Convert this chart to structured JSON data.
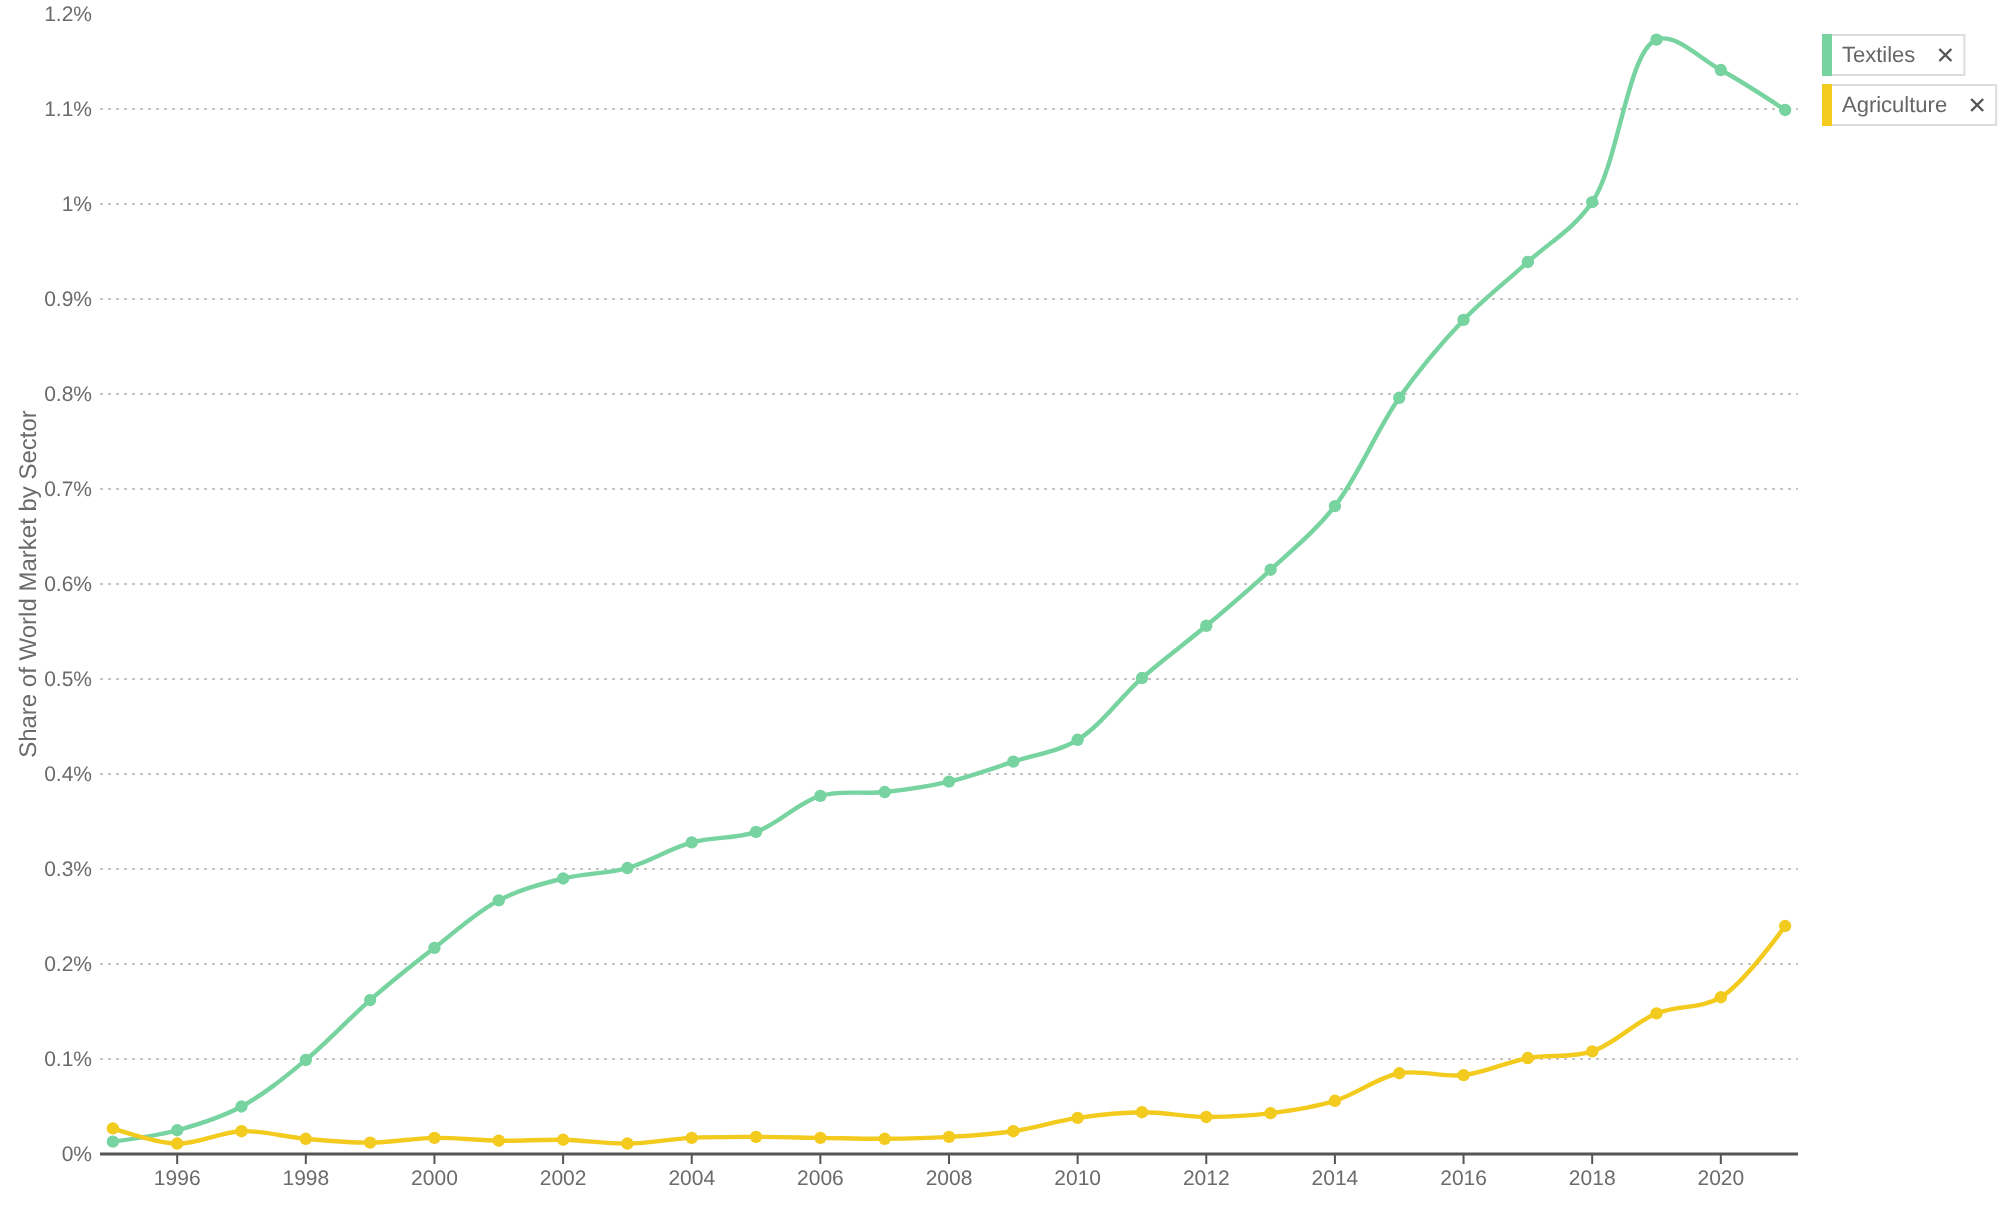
{
  "chart_data": {
    "type": "line",
    "ylabel": "Share of World Market by Sector",
    "x": [
      1995,
      1996,
      1997,
      1998,
      1999,
      2000,
      2001,
      2002,
      2003,
      2004,
      2005,
      2006,
      2007,
      2008,
      2009,
      2010,
      2011,
      2012,
      2013,
      2014,
      2015,
      2016,
      2017,
      2018,
      2019,
      2020,
      2021
    ],
    "series": [
      {
        "name": "Textiles",
        "color": "#77d39f",
        "values": [
          0.013,
          0.025,
          0.05,
          0.099,
          0.162,
          0.217,
          0.267,
          0.29,
          0.301,
          0.328,
          0.339,
          0.377,
          0.381,
          0.392,
          0.413,
          0.436,
          0.501,
          0.556,
          0.615,
          0.682,
          0.796,
          0.878,
          0.939,
          1.002,
          1.173,
          1.141,
          1.099
        ]
      },
      {
        "name": "Agriculture",
        "color": "#f3ca1e",
        "values": [
          0.027,
          0.011,
          0.024,
          0.016,
          0.012,
          0.017,
          0.014,
          0.015,
          0.011,
          0.017,
          0.018,
          0.017,
          0.016,
          0.018,
          0.024,
          0.038,
          0.044,
          0.039,
          0.043,
          0.056,
          0.085,
          0.083,
          0.101,
          0.108,
          0.148,
          0.165,
          0.24
        ]
      }
    ],
    "xlim": [
      1994.8,
      2021.2
    ],
    "xticks": [
      1996,
      1998,
      2000,
      2002,
      2004,
      2006,
      2008,
      2010,
      2012,
      2014,
      2016,
      2018,
      2020
    ],
    "ylim": [
      0,
      1.2
    ],
    "yticks": [
      {
        "value": 0,
        "label": "0%"
      },
      {
        "value": 0.1,
        "label": "0.1%"
      },
      {
        "value": 0.2,
        "label": "0.2%"
      },
      {
        "value": 0.3,
        "label": "0.3%"
      },
      {
        "value": 0.4,
        "label": "0.4%"
      },
      {
        "value": 0.5,
        "label": "0.5%"
      },
      {
        "value": 0.6,
        "label": "0.6%"
      },
      {
        "value": 0.7,
        "label": "0.7%"
      },
      {
        "value": 0.8,
        "label": "0.8%"
      },
      {
        "value": 0.9,
        "label": "0.9%"
      },
      {
        "value": 1,
        "label": "1%"
      },
      {
        "value": 1.1,
        "label": "1.1%"
      },
      {
        "value": 1.2,
        "label": "1.2%"
      }
    ],
    "grid": "y",
    "legend": "top right",
    "marker": "circle",
    "line_style": "solid"
  }
}
